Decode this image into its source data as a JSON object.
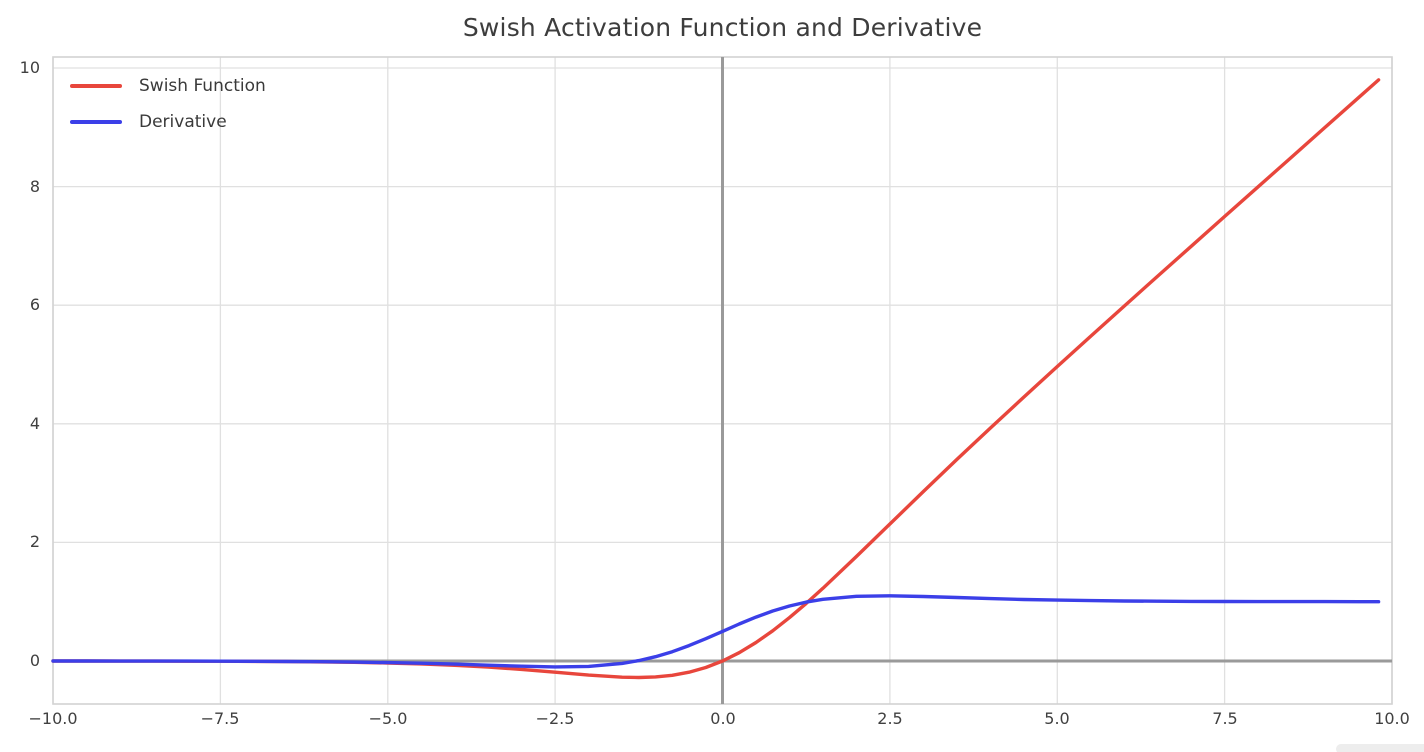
{
  "chart_data": {
    "type": "line",
    "title": "Swish Activation Function and Derivative",
    "xlabel": "",
    "ylabel": "",
    "xlim": [
      -10,
      10
    ],
    "ylim": [
      -0.73,
      10.19
    ],
    "grid": true,
    "legend_position": "upper left",
    "x_ticks": [
      -10,
      -7.5,
      -5,
      -2.5,
      0,
      2.5,
      5,
      7.5,
      10
    ],
    "x_tick_labels": [
      "−10.0",
      "−7.5",
      "−5.0",
      "−2.5",
      "0.0",
      "2.5",
      "5.0",
      "7.5",
      "10.0"
    ],
    "y_ticks": [
      0,
      2,
      4,
      6,
      8,
      10
    ],
    "y_tick_labels": [
      "0",
      "2",
      "4",
      "6",
      "8",
      "10"
    ],
    "axlines": {
      "vertical_x": 0,
      "horizontal_y": 0
    },
    "style": {
      "background": "#ffffff",
      "grid_color": "#e0e0e0",
      "border_color": "#d2d2d2",
      "axis_line_color": "#9a9a9a",
      "text_color": "#404040",
      "title_color": "#3d3d3d"
    },
    "x": [
      -10,
      -9.5,
      -9,
      -8.5,
      -8,
      -7.5,
      -7,
      -6.5,
      -6,
      -5.5,
      -5,
      -4.5,
      -4,
      -3.5,
      -3,
      -2.5,
      -2,
      -1.5,
      -1.25,
      -1,
      -0.75,
      -0.5,
      -0.25,
      0,
      0.25,
      0.5,
      0.75,
      1,
      1.25,
      1.5,
      2,
      2.5,
      3,
      3.5,
      4,
      4.5,
      5,
      5.5,
      6,
      6.5,
      7,
      7.5,
      8,
      8.5,
      9,
      9.5,
      9.8
    ],
    "series": [
      {
        "name": "Swish Function",
        "color": "#e8463c",
        "values": [
          -0.0005,
          -0.0007,
          -0.0011,
          -0.0017,
          -0.0027,
          -0.0041,
          -0.0064,
          -0.0098,
          -0.0148,
          -0.0224,
          -0.0335,
          -0.0494,
          -0.0719,
          -0.1026,
          -0.1423,
          -0.1896,
          -0.2384,
          -0.2736,
          -0.2784,
          -0.2689,
          -0.2406,
          -0.1888,
          -0.1095,
          0,
          0.1405,
          0.3112,
          0.5094,
          0.7311,
          0.9716,
          1.2264,
          1.7616,
          2.3104,
          2.8577,
          3.3974,
          3.9281,
          4.4506,
          4.9665,
          5.4776,
          5.9852,
          6.4903,
          6.9936,
          7.4959,
          7.9973,
          8.4983,
          8.9989,
          9.4993,
          9.7995
        ]
      },
      {
        "name": "Derivative",
        "color": "#3b3fe8",
        "values": [
          -0.0004,
          -0.0006,
          -0.001,
          -0.0015,
          -0.0023,
          -0.0036,
          -0.0055,
          -0.0083,
          -0.0123,
          -0.0182,
          -0.0265,
          -0.0379,
          -0.0527,
          -0.0703,
          -0.0881,
          -0.0994,
          -0.0908,
          -0.0413,
          0.0063,
          0.0723,
          0.1574,
          0.26,
          0.3763,
          0.5,
          0.6237,
          0.74,
          0.8426,
          0.9277,
          0.9937,
          1.0413,
          1.0908,
          1.0994,
          1.0881,
          1.0703,
          1.0527,
          1.0379,
          1.0265,
          1.0182,
          1.0123,
          1.0083,
          1.0055,
          1.0036,
          1.0023,
          1.0015,
          1.001,
          1.0006,
          1.0005
        ]
      }
    ]
  }
}
